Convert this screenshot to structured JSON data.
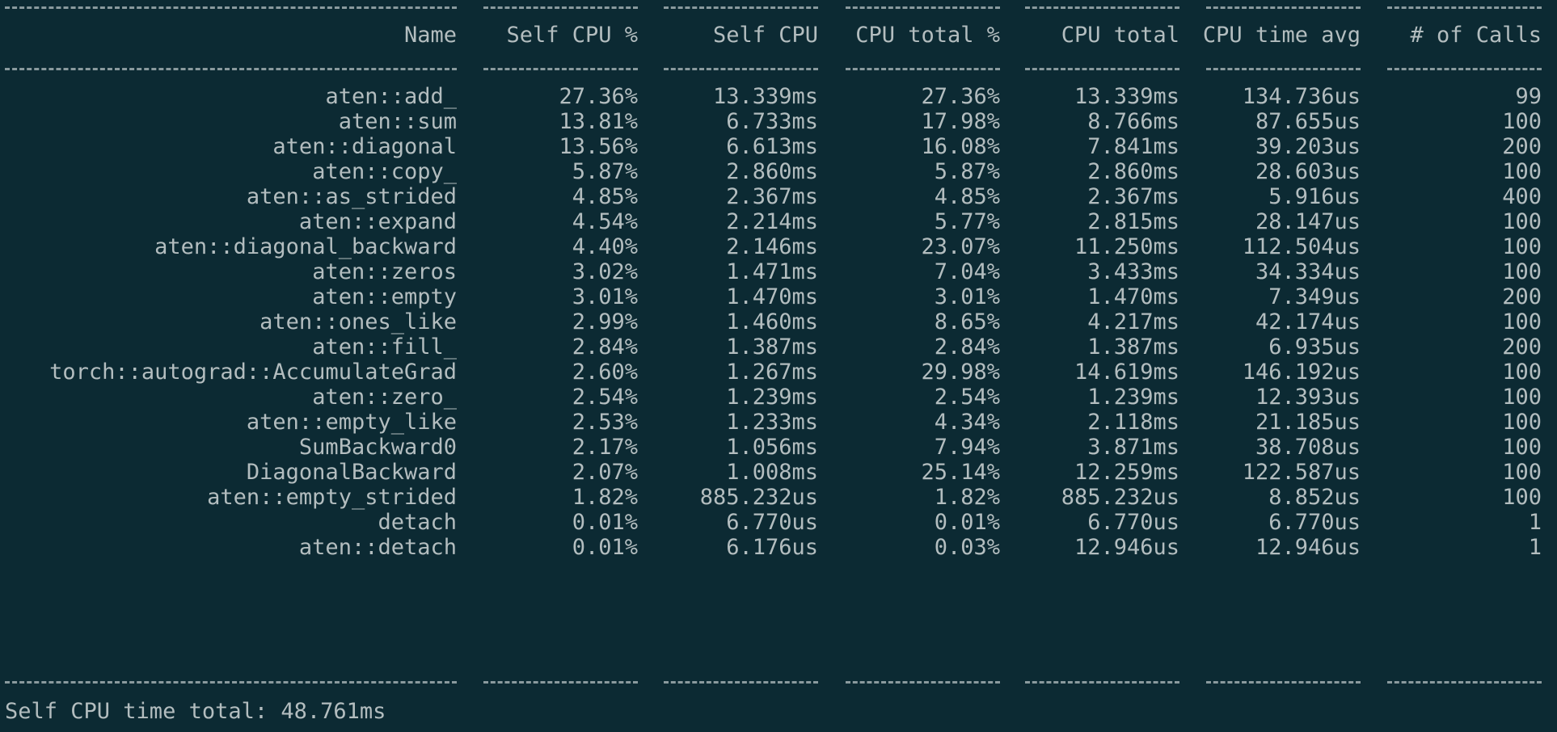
{
  "columns": [
    "Name",
    "Self CPU %",
    "Self CPU",
    "CPU total %",
    "CPU total",
    "CPU time avg",
    "# of Calls"
  ],
  "rows": [
    [
      "aten::add_",
      "27.36%",
      "13.339ms",
      "27.36%",
      "13.339ms",
      "134.736us",
      "99"
    ],
    [
      "aten::sum",
      "13.81%",
      "6.733ms",
      "17.98%",
      "8.766ms",
      "87.655us",
      "100"
    ],
    [
      "aten::diagonal",
      "13.56%",
      "6.613ms",
      "16.08%",
      "7.841ms",
      "39.203us",
      "200"
    ],
    [
      "aten::copy_",
      "5.87%",
      "2.860ms",
      "5.87%",
      "2.860ms",
      "28.603us",
      "100"
    ],
    [
      "aten::as_strided",
      "4.85%",
      "2.367ms",
      "4.85%",
      "2.367ms",
      "5.916us",
      "400"
    ],
    [
      "aten::expand",
      "4.54%",
      "2.214ms",
      "5.77%",
      "2.815ms",
      "28.147us",
      "100"
    ],
    [
      "aten::diagonal_backward",
      "4.40%",
      "2.146ms",
      "23.07%",
      "11.250ms",
      "112.504us",
      "100"
    ],
    [
      "aten::zeros",
      "3.02%",
      "1.471ms",
      "7.04%",
      "3.433ms",
      "34.334us",
      "100"
    ],
    [
      "aten::empty",
      "3.01%",
      "1.470ms",
      "3.01%",
      "1.470ms",
      "7.349us",
      "200"
    ],
    [
      "aten::ones_like",
      "2.99%",
      "1.460ms",
      "8.65%",
      "4.217ms",
      "42.174us",
      "100"
    ],
    [
      "aten::fill_",
      "2.84%",
      "1.387ms",
      "2.84%",
      "1.387ms",
      "6.935us",
      "200"
    ],
    [
      "torch::autograd::AccumulateGrad",
      "2.60%",
      "1.267ms",
      "29.98%",
      "14.619ms",
      "146.192us",
      "100"
    ],
    [
      "aten::zero_",
      "2.54%",
      "1.239ms",
      "2.54%",
      "1.239ms",
      "12.393us",
      "100"
    ],
    [
      "aten::empty_like",
      "2.53%",
      "1.233ms",
      "4.34%",
      "2.118ms",
      "21.185us",
      "100"
    ],
    [
      "SumBackward0",
      "2.17%",
      "1.056ms",
      "7.94%",
      "3.871ms",
      "38.708us",
      "100"
    ],
    [
      "DiagonalBackward",
      "2.07%",
      "1.008ms",
      "25.14%",
      "12.259ms",
      "122.587us",
      "100"
    ],
    [
      "aten::empty_strided",
      "1.82%",
      "885.232us",
      "1.82%",
      "885.232us",
      "8.852us",
      "100"
    ],
    [
      "detach",
      "0.01%",
      "6.770us",
      "0.01%",
      "6.770us",
      "6.770us",
      "1"
    ],
    [
      "aten::detach",
      "0.01%",
      "6.176us",
      "0.03%",
      "12.946us",
      "12.946us",
      "1"
    ]
  ],
  "footer": "Self CPU time total: 48.761ms",
  "colors": {
    "background": "#0c2a33",
    "text": "#b3bdbf",
    "dash": "#8a9a9e"
  }
}
